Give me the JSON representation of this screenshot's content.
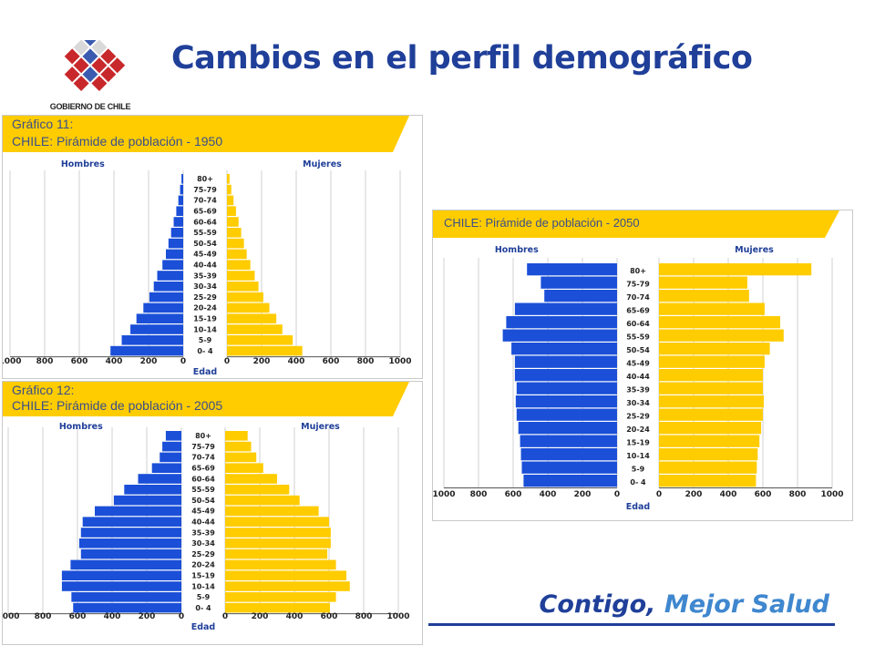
{
  "slide": {
    "title": "Cambios en el perfil demográfico",
    "logo_text": "GOBIERNO DE CHILE",
    "tagline_part1": "Contigo,",
    "tagline_part2": "Mejor Salud"
  },
  "colors": {
    "title": "#1f3f99",
    "hombres": "#1b4fd8",
    "mujeres": "#ffcc00",
    "banner": "#ffcc00",
    "axis_label": "#1f3f99"
  },
  "chart_data": [
    {
      "type": "bar",
      "orientation": "population-pyramid",
      "chart_label": "Gráfico 11:",
      "title": "CHILE: Pirámide de población  - 1950",
      "left_label": "Hombres",
      "right_label": "Mujeres",
      "xlabel": "Edad",
      "xlim": [
        0,
        1000
      ],
      "ticks": [
        "1000",
        "800",
        "600",
        "400",
        "200",
        "0",
        "0",
        "200",
        "400",
        "600",
        "800",
        "1000"
      ],
      "categories": [
        "80+",
        "75-79",
        "70-74",
        "65-69",
        "60-64",
        "55-59",
        "50-54",
        "45-49",
        "40-44",
        "35-39",
        "30-34",
        "25-29",
        "20-24",
        "15-19",
        "10-14",
        "5-9",
        "0- 4"
      ],
      "series": [
        {
          "name": "Hombres",
          "values": [
            10,
            18,
            28,
            40,
            55,
            70,
            85,
            100,
            120,
            150,
            170,
            195,
            230,
            270,
            305,
            355,
            420
          ]
        },
        {
          "name": "Mujeres",
          "values": [
            15,
            25,
            38,
            52,
            67,
            82,
            98,
            114,
            135,
            160,
            182,
            210,
            245,
            285,
            320,
            380,
            435
          ]
        }
      ]
    },
    {
      "type": "bar",
      "orientation": "population-pyramid",
      "chart_label": "Gráfico 12:",
      "title": "CHILE: Pirámide de población  - 2005",
      "left_label": "Hombres",
      "right_label": "Mujeres",
      "xlabel": "Edad",
      "xlim": [
        0,
        1000
      ],
      "ticks": [
        "1000",
        "800",
        "600",
        "400",
        "200",
        "0",
        "0",
        "200",
        "400",
        "600",
        "800",
        "1000"
      ],
      "categories": [
        "80+",
        "75-79",
        "70-74",
        "65-69",
        "60-64",
        "55-59",
        "50-54",
        "45-49",
        "40-44",
        "35-39",
        "30-34",
        "25-29",
        "20-24",
        "15-19",
        "10-14",
        "5-9",
        "0- 4"
      ],
      "series": [
        {
          "name": "Hombres",
          "values": [
            90,
            110,
            125,
            170,
            250,
            330,
            390,
            500,
            570,
            580,
            590,
            580,
            640,
            690,
            690,
            635,
            625
          ]
        },
        {
          "name": "Mujeres",
          "values": [
            130,
            150,
            180,
            220,
            300,
            370,
            430,
            540,
            600,
            610,
            610,
            590,
            640,
            700,
            720,
            640,
            605
          ]
        }
      ]
    },
    {
      "type": "bar",
      "orientation": "population-pyramid",
      "chart_label": "",
      "title": "CHILE: Pirámide de población  - 2050",
      "left_label": "Hombres",
      "right_label": "Mujeres",
      "xlabel": "Edad",
      "xlim": [
        0,
        1000
      ],
      "ticks": [
        "1000",
        "800",
        "600",
        "400",
        "200",
        "0",
        "0",
        "200",
        "400",
        "600",
        "800",
        "1000"
      ],
      "categories": [
        "80+",
        "75-79",
        "70-74",
        "65-69",
        "60-64",
        "55-59",
        "50-54",
        "45-49",
        "40-44",
        "35-39",
        "30-34",
        "25-29",
        "20-24",
        "15-19",
        "10-14",
        "5-9",
        "0- 4"
      ],
      "series": [
        {
          "name": "Hombres",
          "values": [
            520,
            440,
            420,
            590,
            640,
            660,
            610,
            590,
            590,
            580,
            585,
            580,
            570,
            560,
            555,
            550,
            540
          ]
        },
        {
          "name": "Mujeres",
          "values": [
            880,
            510,
            520,
            610,
            700,
            720,
            640,
            610,
            600,
            600,
            605,
            600,
            590,
            580,
            570,
            565,
            560
          ]
        }
      ]
    }
  ]
}
